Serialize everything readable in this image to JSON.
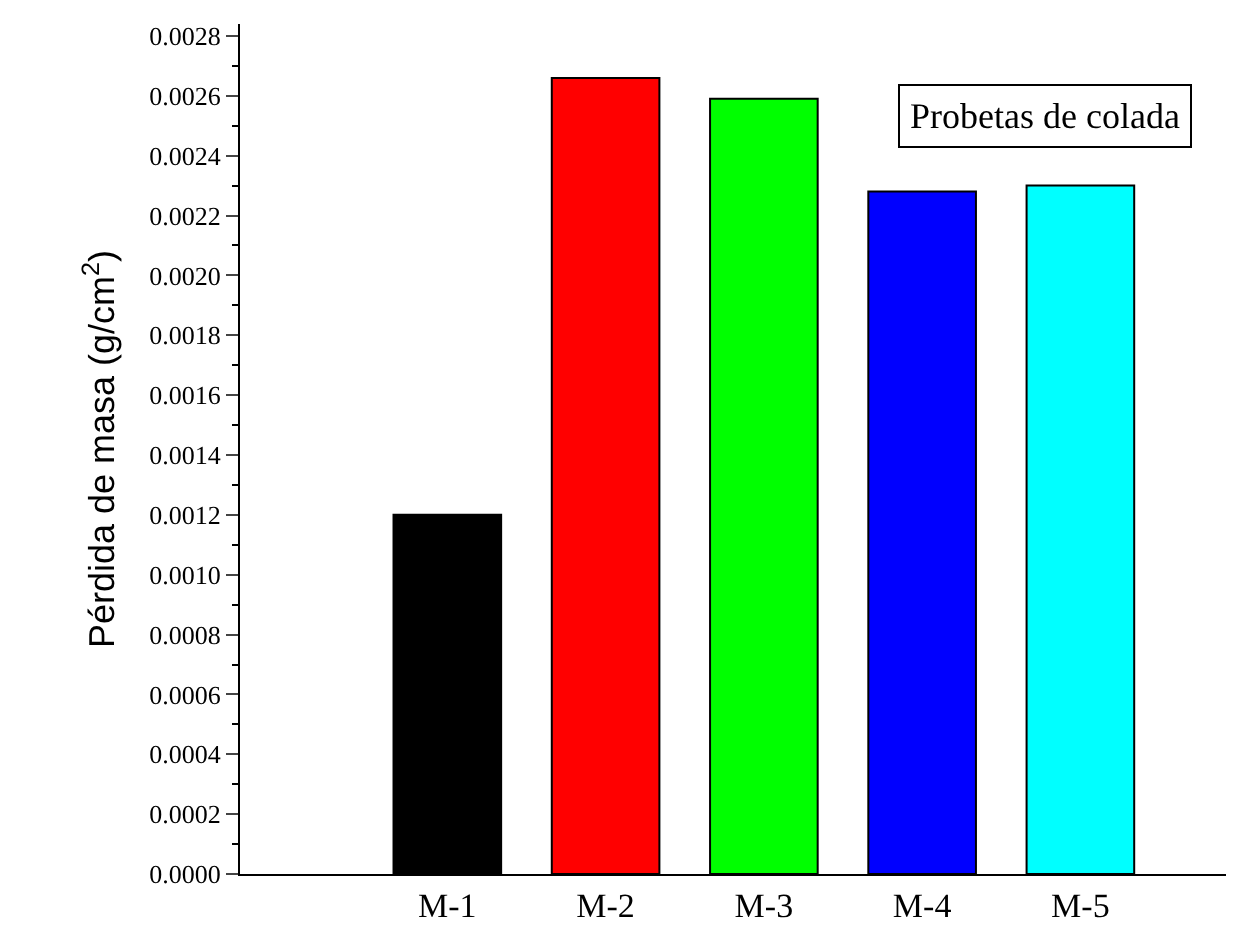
{
  "chart_data": {
    "type": "bar",
    "ylabel": "Pérdida de masa (g/cm$^{2}$)",
    "categories": [
      "M-1",
      "M-2",
      "M-3",
      "M-4",
      "M-5"
    ],
    "values": [
      0.0012,
      0.00266,
      0.00259,
      0.00228,
      0.0023
    ],
    "colors": [
      "#000000",
      "#ff0000",
      "#00ff00",
      "#0000ff",
      "#00ffff"
    ],
    "ylim": [
      0,
      0.00284
    ],
    "yticks": [
      {
        "value": 0,
        "label": "0.0000"
      },
      {
        "value": 0.0002,
        "label": "0.0002"
      },
      {
        "value": 0.0004,
        "label": "0.0004"
      },
      {
        "value": 0.0006,
        "label": "0.0006"
      },
      {
        "value": 0.0008,
        "label": "0.0008"
      },
      {
        "value": 0.001,
        "label": "0.0010"
      },
      {
        "value": 0.0012,
        "label": "0.0012"
      },
      {
        "value": 0.0014,
        "label": "0.0014"
      },
      {
        "value": 0.0016,
        "label": "0.0016"
      },
      {
        "value": 0.0018,
        "label": "0.0018"
      },
      {
        "value": 0.002,
        "label": "0.0020"
      },
      {
        "value": 0.0022,
        "label": "0.0022"
      },
      {
        "value": 0.0024,
        "label": "0.0024"
      },
      {
        "value": 0.0026,
        "label": "0.0026"
      },
      {
        "value": 0.0028,
        "label": "0.0028"
      }
    ],
    "annotations": [
      "Probetas de colada"
    ]
  }
}
